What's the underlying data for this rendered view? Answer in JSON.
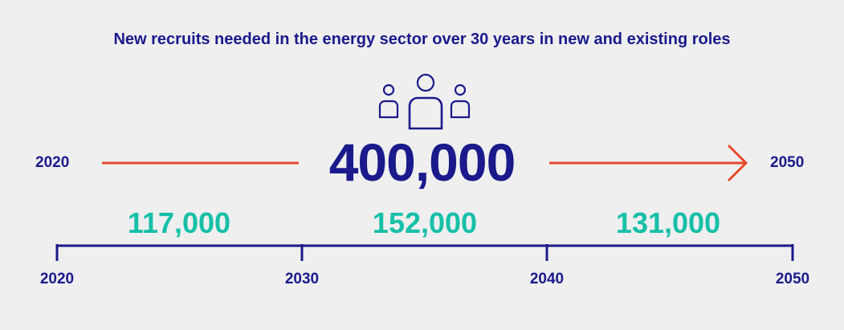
{
  "title": "New recruits needed in the energy sector over 30 years in new and existing roles",
  "total": "400,000",
  "span": {
    "start": "2020",
    "end": "2050"
  },
  "segments": [
    {
      "label": "117,000",
      "from": "2020",
      "to": "2030"
    },
    {
      "label": "152,000",
      "from": "2030",
      "to": "2040"
    },
    {
      "label": "131,000",
      "from": "2040",
      "to": "2050"
    }
  ],
  "ticks": [
    "2020",
    "2030",
    "2040",
    "2050"
  ],
  "colors": {
    "background": "#efefef",
    "navy": "#1a1a8c",
    "teal": "#17bfa8",
    "arrow": "#e8492b"
  },
  "icons": [
    "people-group-icon",
    "arrow-right-icon"
  ]
}
